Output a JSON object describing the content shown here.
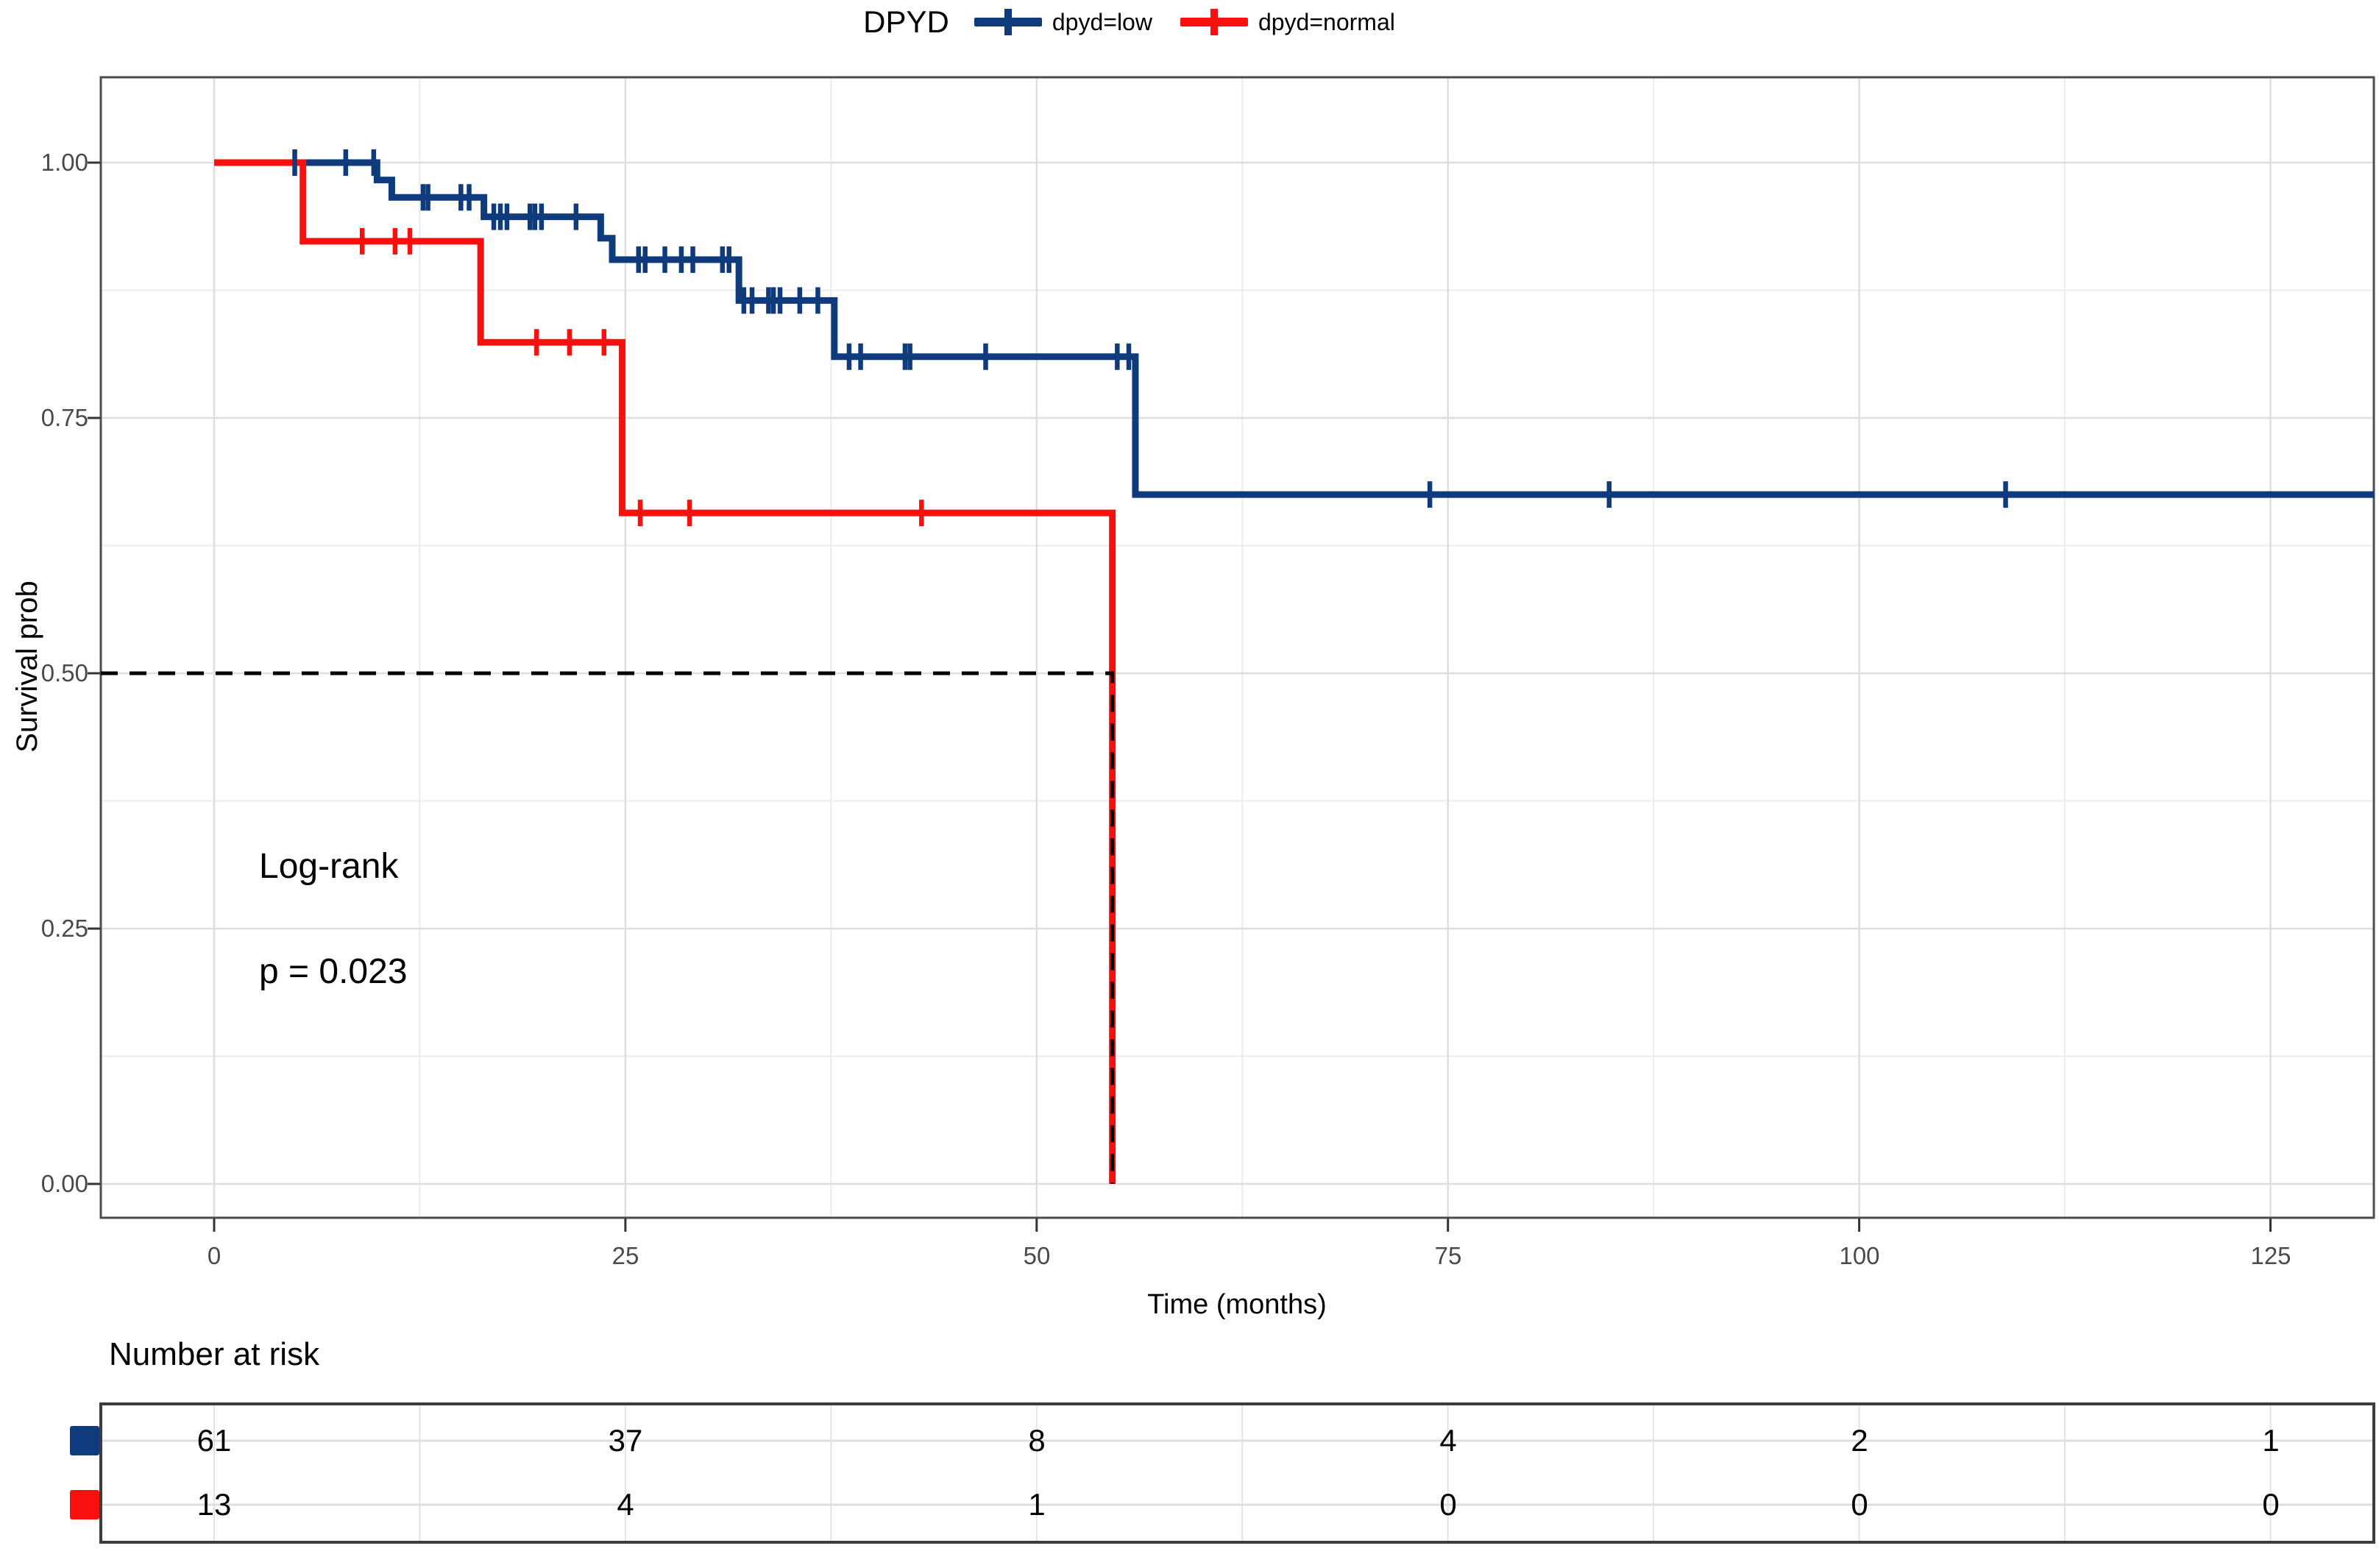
{
  "legend": {
    "title": "DPYD",
    "series": [
      {
        "label": "dpyd=low",
        "color": "#0F3B7C"
      },
      {
        "label": "dpyd=normal",
        "color": "#F8100E"
      }
    ]
  },
  "axes": {
    "x": {
      "label": "Time (months)",
      "tick_labels": [
        "0",
        "25",
        "50",
        "75",
        "100",
        "125"
      ],
      "tick_values": [
        0,
        25,
        50,
        75,
        100,
        125
      ],
      "minor_ticks": [
        12.5,
        37.5,
        62.5,
        87.5,
        112.5
      ],
      "range": [
        0,
        131.3
      ]
    },
    "y": {
      "label": "Survival prob",
      "tick_labels": [
        "1.00",
        "0.75",
        "0.50",
        "0.25",
        "0.00"
      ],
      "tick_values": [
        1.0,
        0.75,
        0.5,
        0.25,
        0.0
      ],
      "minor_ticks": [
        0.875,
        0.625,
        0.375,
        0.125
      ],
      "range": [
        0,
        1
      ]
    }
  },
  "annotation": {
    "line1": "Log-rank",
    "line2": "p = 0.023"
  },
  "chart_data": {
    "type": "line",
    "subtype": "kaplan-meier-step",
    "title": "DPYD",
    "xlabel": "Time (months)",
    "ylabel": "Survival prob",
    "xlim": [
      0,
      131.3
    ],
    "ylim": [
      0,
      1
    ],
    "grid": true,
    "legend_position": "top",
    "median_line": {
      "survival": 0.5,
      "time": 54.6
    },
    "series": [
      {
        "name": "dpyd=low",
        "color": "#0F3B7C",
        "start": [
          0,
          1.0
        ],
        "steps": [
          [
            9.9,
            0.983
          ],
          [
            10.8,
            0.966
          ],
          [
            16.4,
            0.947
          ],
          [
            23.5,
            0.926
          ],
          [
            24.2,
            0.905
          ],
          [
            31.9,
            0.865
          ],
          [
            37.7,
            0.81
          ],
          [
            56.0,
            0.675
          ]
        ],
        "end_time": 131.3,
        "censors": [
          [
            4.9,
            1.0
          ],
          [
            8.0,
            1.0
          ],
          [
            9.7,
            1.0
          ],
          [
            12.7,
            0.966
          ],
          [
            13.0,
            0.966
          ],
          [
            15.0,
            0.966
          ],
          [
            15.5,
            0.966
          ],
          [
            17.0,
            0.947
          ],
          [
            17.4,
            0.947
          ],
          [
            17.8,
            0.947
          ],
          [
            19.2,
            0.947
          ],
          [
            19.5,
            0.947
          ],
          [
            19.9,
            0.947
          ],
          [
            22.0,
            0.947
          ],
          [
            25.8,
            0.905
          ],
          [
            26.2,
            0.905
          ],
          [
            27.4,
            0.905
          ],
          [
            28.4,
            0.905
          ],
          [
            29.1,
            0.905
          ],
          [
            30.9,
            0.905
          ],
          [
            31.3,
            0.905
          ],
          [
            32.2,
            0.865
          ],
          [
            32.7,
            0.865
          ],
          [
            33.7,
            0.865
          ],
          [
            34.0,
            0.865
          ],
          [
            34.4,
            0.865
          ],
          [
            35.6,
            0.865
          ],
          [
            36.7,
            0.865
          ],
          [
            38.6,
            0.81
          ],
          [
            39.3,
            0.81
          ],
          [
            42.0,
            0.81
          ],
          [
            42.3,
            0.81
          ],
          [
            46.9,
            0.81
          ],
          [
            54.9,
            0.81
          ],
          [
            55.6,
            0.81
          ],
          [
            73.9,
            0.675
          ],
          [
            84.8,
            0.675
          ],
          [
            108.9,
            0.675
          ]
        ]
      },
      {
        "name": "dpyd=normal",
        "color": "#F8100E",
        "start": [
          0,
          1.0
        ],
        "steps": [
          [
            5.4,
            0.923
          ],
          [
            16.2,
            0.824
          ],
          [
            24.8,
            0.657
          ],
          [
            54.6,
            0.0
          ]
        ],
        "end_time": 54.6,
        "censors": [
          [
            9.0,
            0.923
          ],
          [
            11.0,
            0.923
          ],
          [
            11.9,
            0.923
          ],
          [
            19.6,
            0.824
          ],
          [
            21.6,
            0.824
          ],
          [
            23.7,
            0.824
          ],
          [
            25.9,
            0.657
          ],
          [
            28.9,
            0.657
          ],
          [
            43.0,
            0.657
          ]
        ]
      }
    ]
  },
  "risk_table": {
    "title": "Number at risk",
    "times": [
      0,
      25,
      50,
      75,
      100,
      125
    ],
    "rows": [
      {
        "name": "dpyd=low",
        "color": "#0F3B7C",
        "counts": [
          "61",
          "37",
          "8",
          "4",
          "2",
          "1"
        ]
      },
      {
        "name": "dpyd=normal",
        "color": "#F8100E",
        "counts": [
          "13",
          "4",
          "1",
          "0",
          "0",
          "0"
        ]
      }
    ]
  },
  "style": {
    "grid_major_color": "#dedede",
    "grid_minor_color": "#ececec",
    "panel_border_color": "#4d4d4d",
    "median_line_color": "#000000"
  }
}
